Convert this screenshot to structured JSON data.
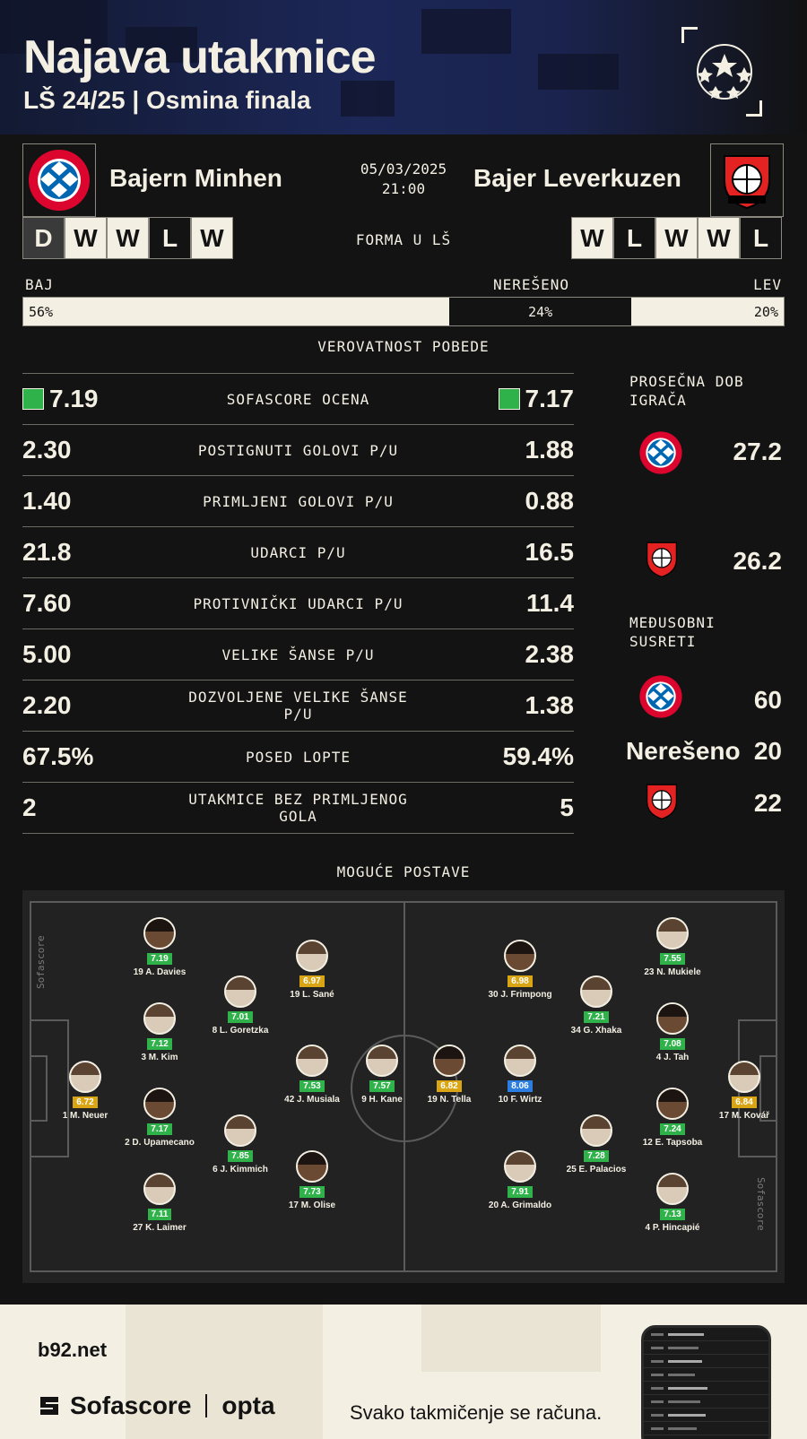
{
  "header": {
    "title": "Najava utakmice",
    "subtitle": "LŠ 24/25 | Osmina finala"
  },
  "match": {
    "home": {
      "name": "Bajern Minhen",
      "short": "BAJ",
      "form": [
        "D",
        "W",
        "W",
        "L",
        "W"
      ]
    },
    "away": {
      "name": "Bajer Leverkuzen",
      "short": "LEV",
      "form": [
        "W",
        "L",
        "W",
        "W",
        "L"
      ]
    },
    "date": "05/03/2025",
    "time": "21:00",
    "form_label": "FORMA U LŠ"
  },
  "probability": {
    "draw_label": "NEREŠENO",
    "home_pct": "56%",
    "draw_pct": "24%",
    "away_pct": "20%",
    "home_value": 56,
    "draw_value": 24,
    "away_value": 20,
    "caption": "VEROVATNOST POBEDE"
  },
  "stats": [
    {
      "home": "7.19",
      "label": "SOFASCORE OCENA",
      "away": "7.17",
      "badge": true
    },
    {
      "home": "2.30",
      "label": "POSTIGNUTI GOLOVI P/U",
      "away": "1.88"
    },
    {
      "home": "1.40",
      "label": "PRIMLJENI GOLOVI P/U",
      "away": "0.88"
    },
    {
      "home": "21.8",
      "label": "UDARCI P/U",
      "away": "16.5"
    },
    {
      "home": "7.60",
      "label": "PROTIVNIČKI UDARCI P/U",
      "away": "11.4"
    },
    {
      "home": "5.00",
      "label": "VELIKE ŠANSE P/U",
      "away": "2.38"
    },
    {
      "home": "2.20",
      "label": "DOZVOLJENE VELIKE ŠANSE P/U",
      "away": "1.38"
    },
    {
      "home": "67.5%",
      "label": "POSED LOPTE",
      "away": "59.4%"
    },
    {
      "home": "2",
      "label": "UTAKMICE BEZ PRIMLJENOG GOLA",
      "away": "5"
    }
  ],
  "side": {
    "age_title_1": "PROSEČNA DOB",
    "age_title_2": "IGRAČA",
    "home_age": "27.2",
    "away_age": "26.2",
    "h2h_title_1": "MEĐUSOBNI",
    "h2h_title_2": "SUSRETI",
    "h2h_home": "60",
    "h2h_draw_label": "Nerešeno",
    "h2h_draw": "20",
    "h2h_away": "22"
  },
  "lineups": {
    "caption": "MOGUĆE POSTAVE",
    "watermark": "Sofascore",
    "home": [
      {
        "name": "1 M. Neuer",
        "rating": "6.72",
        "tier": "yellow"
      },
      {
        "name": "19 A. Davies",
        "rating": "7.19",
        "tier": "green"
      },
      {
        "name": "3 M. Kim",
        "rating": "7.12",
        "tier": "green"
      },
      {
        "name": "2 D. Upamecano",
        "rating": "7.17",
        "tier": "green"
      },
      {
        "name": "27 K. Laimer",
        "rating": "7.11",
        "tier": "green"
      },
      {
        "name": "8 L. Goretzka",
        "rating": "7.01",
        "tier": "green"
      },
      {
        "name": "6 J. Kimmich",
        "rating": "7.85",
        "tier": "green"
      },
      {
        "name": "19 L. Sané",
        "rating": "6.97",
        "tier": "yellow"
      },
      {
        "name": "42 J. Musiala",
        "rating": "7.53",
        "tier": "green"
      },
      {
        "name": "17 M. Olise",
        "rating": "7.73",
        "tier": "green"
      },
      {
        "name": "9 H. Kane",
        "rating": "7.57",
        "tier": "green"
      }
    ],
    "away": [
      {
        "name": "19 N. Tella",
        "rating": "6.82",
        "tier": "yellow"
      },
      {
        "name": "10 F. Wirtz",
        "rating": "8.06",
        "tier": "blue"
      },
      {
        "name": "30 J. Frimpong",
        "rating": "6.98",
        "tier": "yellow"
      },
      {
        "name": "20 A. Grimaldo",
        "rating": "7.91",
        "tier": "green"
      },
      {
        "name": "34 G. Xhaka",
        "rating": "7.21",
        "tier": "green"
      },
      {
        "name": "25 E. Palacios",
        "rating": "7.28",
        "tier": "green"
      },
      {
        "name": "23 N. Mukiele",
        "rating": "7.55",
        "tier": "green"
      },
      {
        "name": "4 J. Tah",
        "rating": "7.08",
        "tier": "green"
      },
      {
        "name": "12 E. Tapsoba",
        "rating": "7.24",
        "tier": "green"
      },
      {
        "name": "4 P. Hincapié",
        "rating": "7.13",
        "tier": "green"
      },
      {
        "name": "17 M. Kovář",
        "rating": "6.84",
        "tier": "yellow"
      }
    ]
  },
  "footer": {
    "site": "b92.net",
    "brand": "Sofascore",
    "partner": "opta",
    "tagline": "Svako takmičenje se računa."
  },
  "colors": {
    "cream": "#f3efe3",
    "background": "#131313",
    "rating_green": "#2fb24a",
    "rating_yellow": "#d9a514",
    "rating_blue": "#2b7de0",
    "bayern_red": "#dc052d",
    "leverkusen_red": "#e32221"
  }
}
